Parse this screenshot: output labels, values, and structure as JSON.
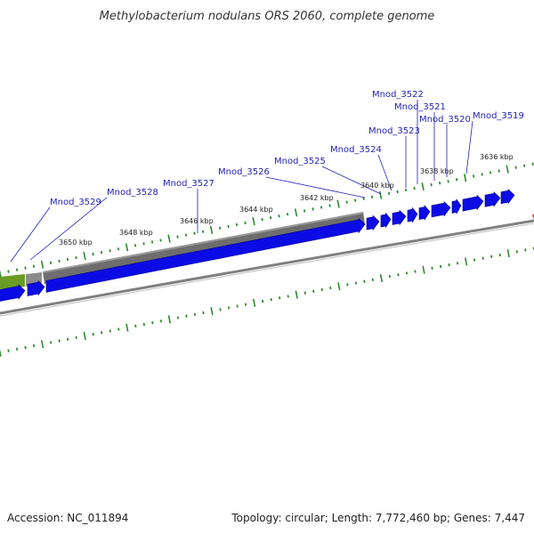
{
  "title": "Methylobacterium nodulans ORS 2060, complete genome",
  "footer": {
    "accession": "Accession: NC_011894",
    "summary": "Topology: circular; Length: 7,772,460 bp; Genes: 7,447"
  },
  "colors": {
    "gene": "#0b0be6",
    "gene_dark": "#00008a",
    "region_gray": "#6e6e6e",
    "region_green": "#6b9a25",
    "backbone": "#808080",
    "tick": "#2e8b2e",
    "label": "#1f1fb8",
    "marker": "#d93030"
  },
  "tick_labels": [
    {
      "text": "3636 kbp",
      "kbp": 3636
    },
    {
      "text": "3638 kbp",
      "kbp": 3638
    },
    {
      "text": "3640 kbp",
      "kbp": 3640
    },
    {
      "text": "3642 kbp",
      "kbp": 3642
    },
    {
      "text": "3644 kbp",
      "kbp": 3644
    },
    {
      "text": "3646 kbp",
      "kbp": 3646
    },
    {
      "text": "3648 kbp",
      "kbp": 3648
    },
    {
      "text": "3650 kbp",
      "kbp": 3650
    }
  ],
  "gene_labels": [
    {
      "name": "Mnod_3519"
    },
    {
      "name": "Mnod_3520"
    },
    {
      "name": "Mnod_3521"
    },
    {
      "name": "Mnod_3522"
    },
    {
      "name": "Mnod_3523"
    },
    {
      "name": "Mnod_3524"
    },
    {
      "name": "Mnod_3525"
    },
    {
      "name": "Mnod_3526"
    },
    {
      "name": "Mnod_3527"
    },
    {
      "name": "Mnod_3528"
    },
    {
      "name": "Mnod_3529"
    }
  ]
}
